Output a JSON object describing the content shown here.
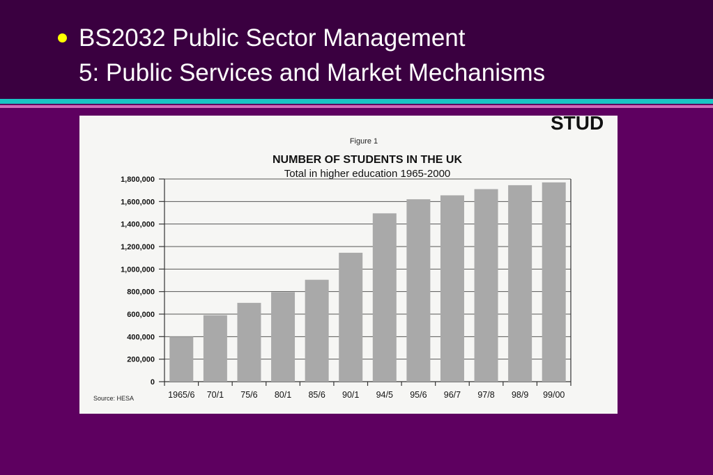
{
  "slide": {
    "title_line1": "BS2032 Public Sector Management",
    "title_line2": "5: Public Services and Market Mechanisms"
  },
  "colors": {
    "background": "#5e0060",
    "header_band": "#3a0040",
    "bullet": "#ffff00",
    "rule_teal": "#19c6c4",
    "rule_pink": "#d06cb8",
    "bar": "#a9a9a9"
  },
  "figure": {
    "label": "Figure 1",
    "corner_text": "STUD",
    "source": "Source: HESA"
  },
  "chart_data": {
    "type": "bar",
    "title": "NUMBER OF STUDENTS IN THE UK",
    "subtitle": "Total in higher education 1965-2000",
    "xlabel": "",
    "ylabel": "",
    "categories": [
      "1965/6",
      "70/1",
      "75/6",
      "80/1",
      "85/6",
      "90/1",
      "94/5",
      "95/6",
      "96/7",
      "97/8",
      "98/9",
      "99/00"
    ],
    "values": [
      400000,
      590000,
      700000,
      795000,
      905000,
      1145000,
      1495000,
      1620000,
      1655000,
      1710000,
      1745000,
      1770000
    ],
    "ylim": [
      0,
      1800000
    ],
    "yticks": [
      0,
      200000,
      400000,
      600000,
      800000,
      1000000,
      1200000,
      1400000,
      1600000,
      1800000
    ],
    "ytick_labels": [
      "0",
      "200,000",
      "400,000",
      "600,000",
      "800,000",
      "1,000,000",
      "1,200,000",
      "1,400,000",
      "1,600,000",
      "1,800,000"
    ],
    "grid": true,
    "legend": "none"
  }
}
